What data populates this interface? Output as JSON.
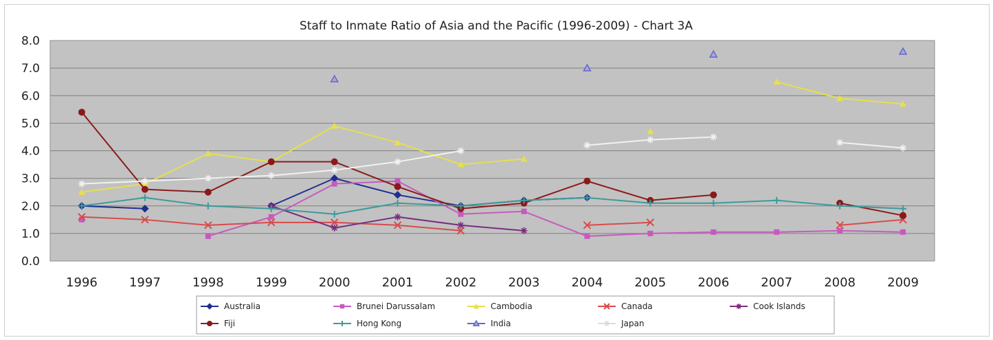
{
  "chart_data": {
    "type": "line",
    "title": "Staff to Inmate Ratio of Asia and the Pacific (1996-2009) - Chart 3A",
    "xlabel": "",
    "ylabel": "",
    "categories": [
      "1996",
      "1997",
      "1998",
      "1999",
      "2000",
      "2001",
      "2002",
      "2003",
      "2004",
      "2005",
      "2006",
      "2007",
      "2008",
      "2009"
    ],
    "ylim": [
      0,
      8
    ],
    "yticks": [
      "0.0",
      "1.0",
      "2.0",
      "3.0",
      "4.0",
      "5.0",
      "6.0",
      "7.0",
      "8.0"
    ],
    "grid": true,
    "legend_position": "bottom",
    "series": [
      {
        "name": "Australia",
        "color": "#1f2f8f",
        "marker": "diamond",
        "values": [
          2.0,
          1.9,
          null,
          2.0,
          3.0,
          2.4,
          2.0,
          2.2,
          2.3,
          null,
          null,
          null,
          null,
          null
        ]
      },
      {
        "name": "Brunei Darussalam",
        "color": "#c65bbf",
        "marker": "square",
        "values": [
          1.5,
          null,
          0.9,
          1.6,
          2.8,
          2.9,
          1.7,
          1.8,
          0.9,
          1.0,
          1.05,
          1.05,
          1.1,
          1.05
        ]
      },
      {
        "name": "Cambodia",
        "color": "#e6e04a",
        "marker": "triangle",
        "values": [
          2.5,
          2.8,
          3.9,
          3.6,
          4.9,
          4.3,
          3.5,
          3.7,
          null,
          4.7,
          null,
          6.5,
          5.9,
          5.7
        ]
      },
      {
        "name": "Canada",
        "color": "#d84a4a",
        "marker": "x",
        "values": [
          1.6,
          1.5,
          1.3,
          1.4,
          1.4,
          1.3,
          1.1,
          null,
          1.3,
          1.4,
          null,
          null,
          1.3,
          1.5
        ]
      },
      {
        "name": "Cook Islands",
        "color": "#7a2c80",
        "marker": "star",
        "values": [
          null,
          null,
          null,
          2.0,
          1.2,
          1.6,
          1.3,
          1.1,
          null,
          null,
          null,
          null,
          null,
          null
        ]
      },
      {
        "name": "Fiji",
        "color": "#8a1a1a",
        "marker": "circle",
        "values": [
          5.4,
          2.6,
          2.5,
          3.6,
          3.6,
          2.7,
          1.9,
          2.1,
          2.9,
          2.2,
          2.4,
          null,
          2.1,
          1.65
        ]
      },
      {
        "name": "Hong Kong",
        "color": "#3e9a9a",
        "marker": "plus",
        "values": [
          2.0,
          2.3,
          2.0,
          1.9,
          1.7,
          2.1,
          2.0,
          2.2,
          2.3,
          2.1,
          2.1,
          2.2,
          2.0,
          1.9
        ]
      },
      {
        "name": "India",
        "color": "#6666cc",
        "marker": "triangle-open",
        "values": [
          null,
          null,
          null,
          null,
          6.6,
          null,
          null,
          null,
          7.0,
          null,
          7.5,
          null,
          null,
          7.6
        ]
      },
      {
        "name": "Japan",
        "color": "#f2f2f2",
        "marker": "star",
        "values": [
          2.8,
          2.9,
          3.0,
          3.1,
          3.3,
          3.6,
          4.0,
          null,
          4.2,
          4.4,
          4.5,
          null,
          4.3,
          4.1
        ]
      }
    ]
  }
}
